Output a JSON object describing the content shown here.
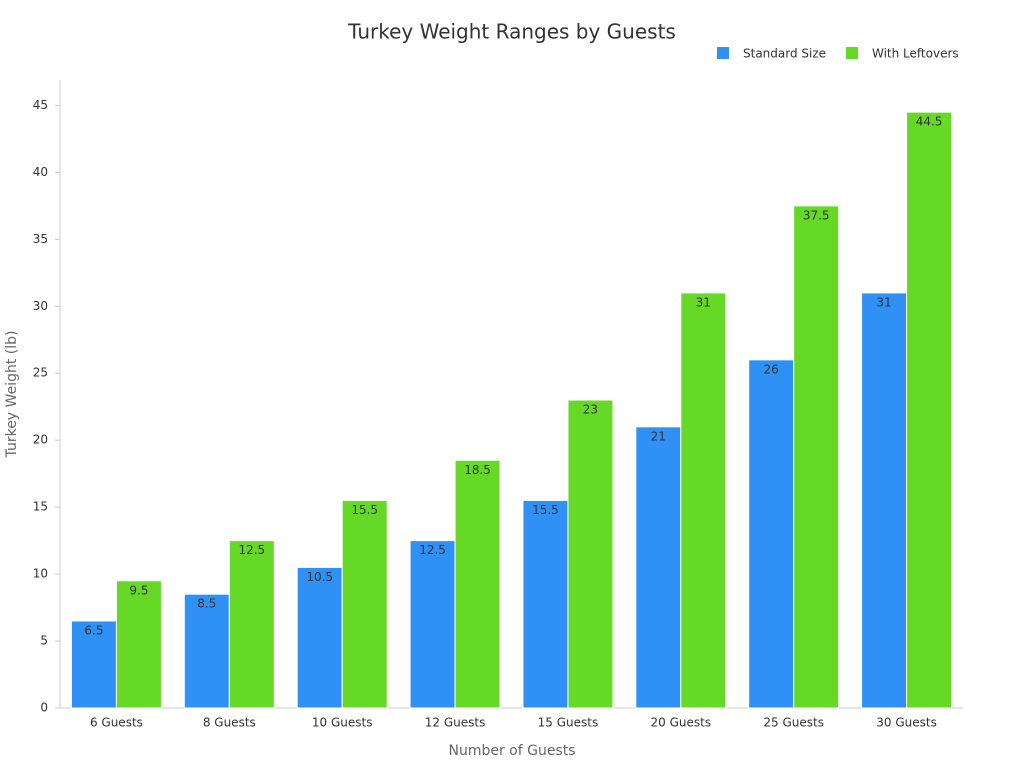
{
  "chart_data": {
    "type": "bar",
    "title": "Turkey Weight Ranges by Guests",
    "x_label": "Number of Guests",
    "y_label": "Turkey Weight (lb)",
    "categories": [
      "6 Guests",
      "8 Guests",
      "10 Guests",
      "12 Guests",
      "15 Guests",
      "20 Guests",
      "25 Guests",
      "30 Guests"
    ],
    "series": [
      {
        "name": "Standard Size",
        "color": "#2f91f5",
        "values": [
          6.5,
          8.5,
          10.5,
          12.5,
          15.5,
          21,
          26,
          31
        ]
      },
      {
        "name": "With Leftovers",
        "color": "#66d926",
        "values": [
          9.5,
          12.5,
          15.5,
          18.5,
          23,
          31,
          37.5,
          44.5
        ]
      }
    ],
    "ylim": [
      0,
      46.9
    ],
    "yticks": [
      0,
      5,
      10,
      15,
      20,
      25,
      30,
      35,
      40,
      45
    ],
    "grid": false,
    "legend": "top-right"
  }
}
